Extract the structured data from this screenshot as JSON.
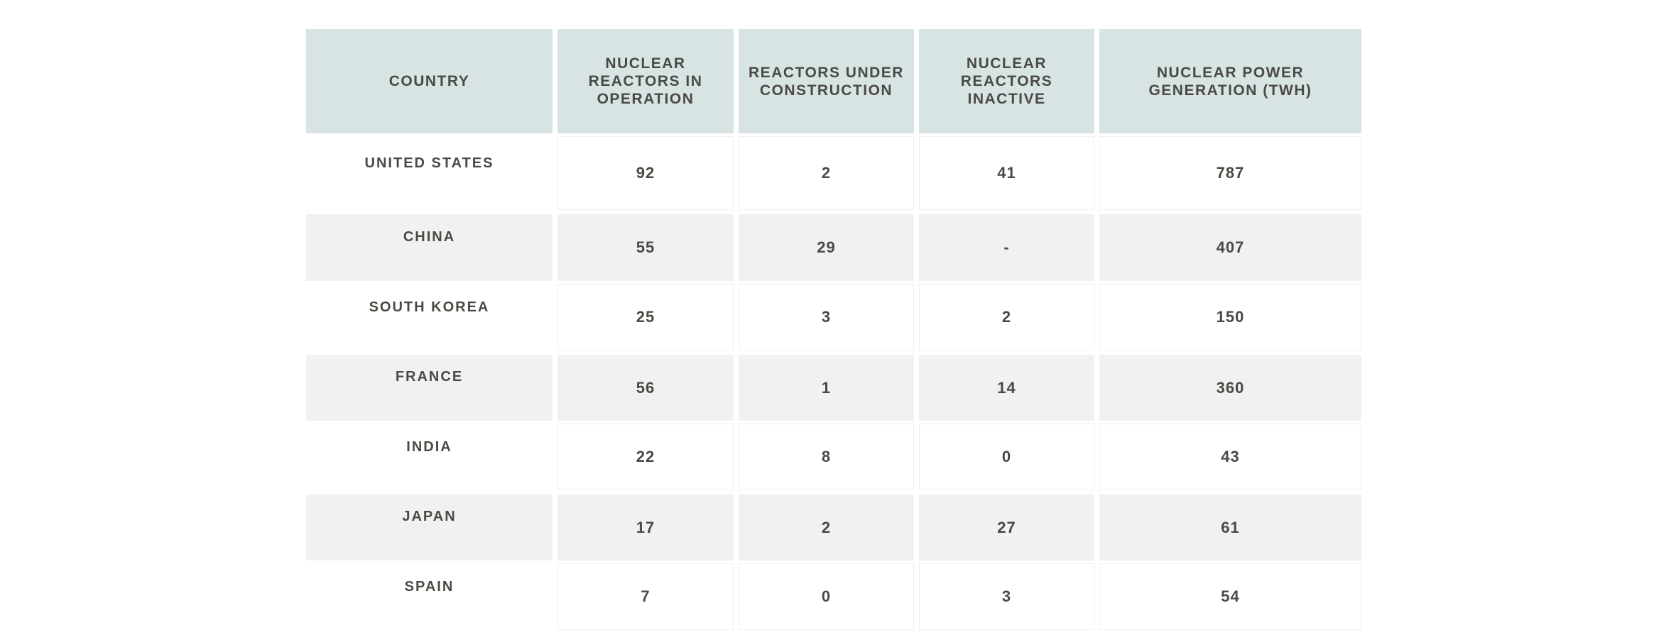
{
  "chart_data": {
    "type": "table",
    "columns": [
      "COUNTRY",
      "NUCLEAR REACTORS IN OPERATION",
      "REACTORS UNDER CONSTRUCTION",
      "NUCLEAR REACTORS INACTIVE",
      "NUCLEAR POWER GENERATION (TWH)"
    ],
    "rows": [
      [
        "UNITED STATES",
        92,
        2,
        41,
        787
      ],
      [
        "CHINA",
        55,
        29,
        "-",
        407
      ],
      [
        "SOUTH KOREA",
        25,
        3,
        2,
        150
      ],
      [
        "FRANCE",
        56,
        1,
        14,
        360
      ],
      [
        "INDIA",
        22,
        8,
        0,
        43
      ],
      [
        "JAPAN",
        17,
        2,
        27,
        61
      ],
      [
        "SPAIN",
        7,
        0,
        3,
        54
      ]
    ],
    "legend_position": "none",
    "grid": "row-stripes"
  },
  "header_display": {
    "country": "COUNTRY",
    "in_operation": "NUCLEAR\nREACTORS IN\nOPERATION",
    "under_construction": "REACTORS UNDER\nCONSTRUCTION",
    "inactive": "NUCLEAR\nREACTORS\nINACTIVE",
    "generation": "NUCLEAR POWER\nGENERATION (TWH)"
  },
  "colors": {
    "page_bg": "#ffffff",
    "header_bg": "#d8e4e3",
    "stripe_bg": "#f1f1f1",
    "cell_border": "#eaf2f1",
    "text": "#4a4a44"
  }
}
